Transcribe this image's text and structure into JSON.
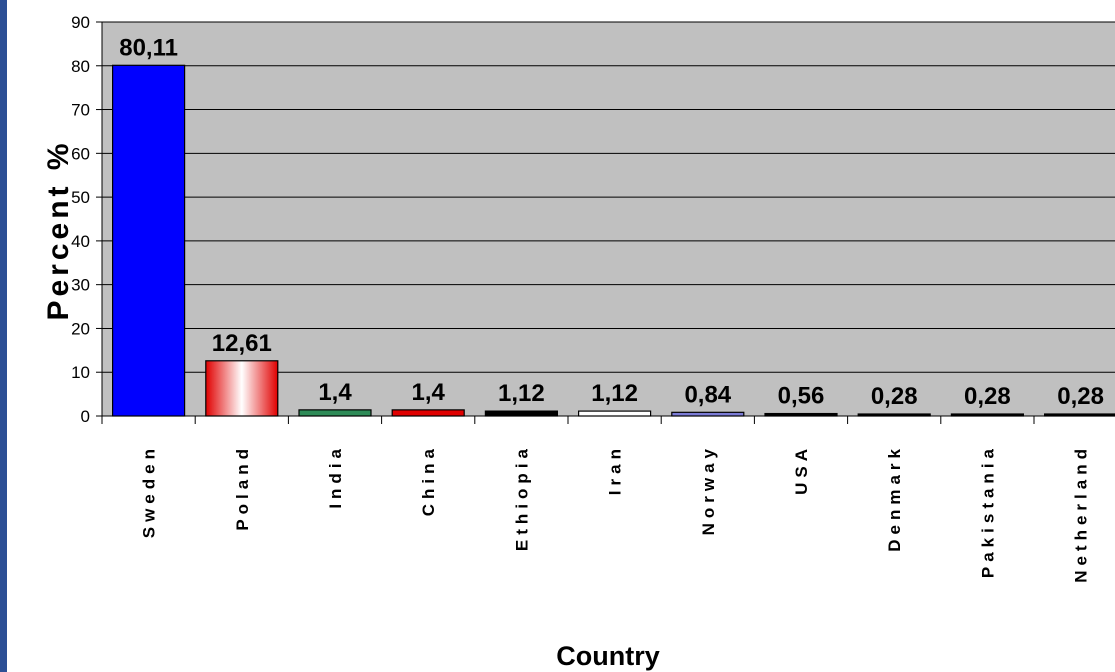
{
  "chart_data": {
    "type": "bar",
    "title": "",
    "xlabel": "Country",
    "ylabel": "Percent %",
    "ylim": [
      0,
      90
    ],
    "yticks": [
      0,
      10,
      20,
      30,
      40,
      50,
      60,
      70,
      80,
      90
    ],
    "categories": [
      "Sweden",
      "Poland",
      "India",
      "China",
      "Ethiopia",
      "Iran",
      "Norway",
      "USA",
      "Denmark",
      "Pakistania",
      "Netherland"
    ],
    "values": [
      80.11,
      12.61,
      1.4,
      1.4,
      1.12,
      1.12,
      0.84,
      0.56,
      0.28,
      0.28,
      0.28
    ],
    "value_labels": [
      "80,11",
      "12,61",
      "1,4",
      "1,4",
      "1,12",
      "1,12",
      "0,84",
      "0,56",
      "0,28",
      "0,28",
      "0,28"
    ],
    "category_display": [
      "S w e d e n",
      "P o l a n d",
      "I n d i a",
      "C h i n a",
      "E t h i o p i a",
      "I r a n",
      "N o r w a y",
      "U S A",
      "D e n m a r k",
      "P a k i s t a n i a",
      "N e t h e r l a n d"
    ],
    "grid": true,
    "legend": "none",
    "colors": {
      "plot_background": "#c0c0c0",
      "left_border": "#2c4f95",
      "bars": [
        "#0000ff",
        "gradient-red-white",
        "#2e8b57",
        "#e00000",
        "#000000",
        "#ffffff",
        "#7b7bd6",
        "#000000",
        "#000000",
        "#000000",
        "#000000"
      ]
    }
  }
}
